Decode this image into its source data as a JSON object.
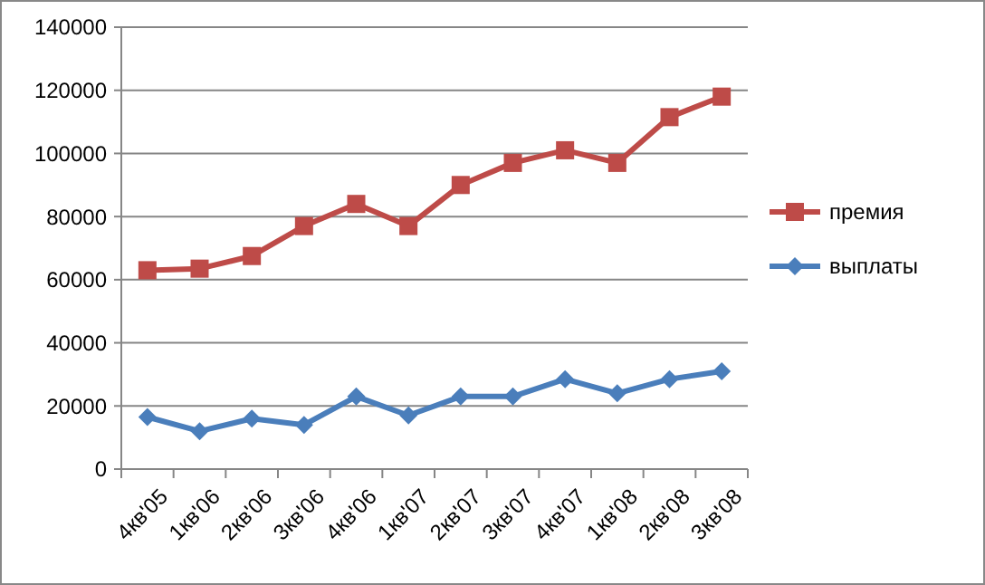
{
  "chart_data": {
    "type": "line",
    "categories": [
      "4кв'05",
      "1кв'06",
      "2кв'06",
      "3кв'06",
      "4кв'06",
      "1кв'07",
      "2кв'07",
      "3кв'07",
      "4кв'07",
      "1кв'08",
      "2кв'08",
      "3кв'08"
    ],
    "series": [
      {
        "name": "премия",
        "color": "#be4b48",
        "marker": "square",
        "values": [
          63000,
          63500,
          67500,
          77000,
          84000,
          77000,
          90000,
          97000,
          101000,
          97000,
          111500,
          118000
        ]
      },
      {
        "name": "выплаты",
        "color": "#4a7ebb",
        "marker": "diamond",
        "values": [
          16500,
          12000,
          16000,
          14000,
          23000,
          17000,
          23000,
          23000,
          28500,
          24000,
          28500,
          31000
        ]
      }
    ],
    "ylim": [
      0,
      140000
    ],
    "yticks": [
      0,
      20000,
      40000,
      60000,
      80000,
      100000,
      120000,
      140000
    ],
    "grid": "y",
    "legend": "right"
  }
}
